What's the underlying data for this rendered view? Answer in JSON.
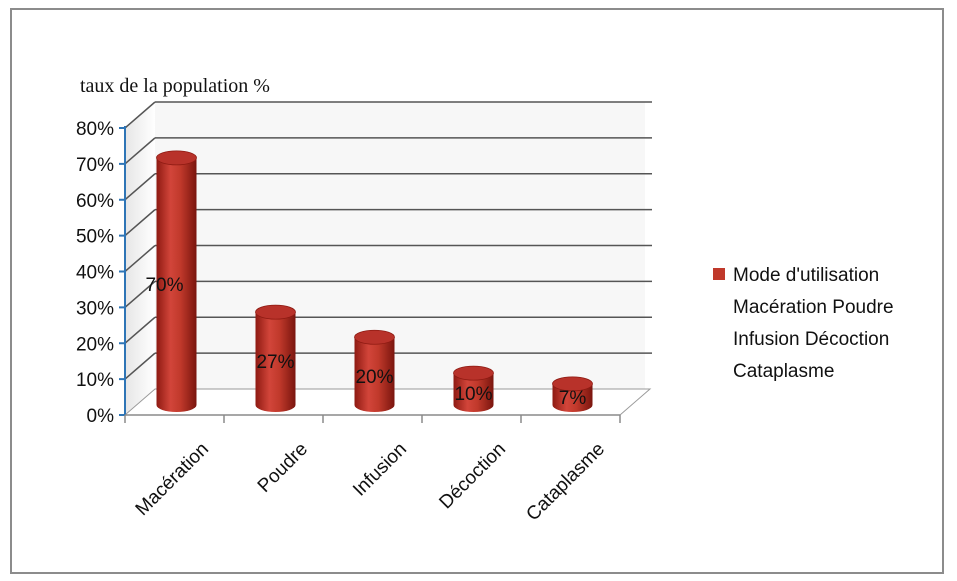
{
  "chart_data": {
    "type": "bar",
    "style": "3d-cylinder",
    "ylabel": "taux de la population %",
    "ylim": [
      0,
      80
    ],
    "yticks": [
      "0%",
      "10%",
      "20%",
      "30%",
      "40%",
      "50%",
      "60%",
      "70%",
      "80%"
    ],
    "categories": [
      "Macération",
      "Poudre",
      "Infusion",
      "Décoction",
      "Cataplasme"
    ],
    "series": [
      {
        "name": "Mode d'utilisation Macération Poudre Infusion Décoction Cataplasme",
        "values": [
          70,
          27,
          20,
          10,
          7
        ],
        "data_labels": [
          "70%",
          "27%",
          "20%",
          "10%",
          "7%"
        ],
        "color": "#c0392b"
      }
    ],
    "legend_position": "right",
    "grid": true
  },
  "legend": {
    "lines": [
      "Mode d'utilisation",
      "Macération Poudre",
      "Infusion Décoction",
      "Cataplasme"
    ]
  }
}
